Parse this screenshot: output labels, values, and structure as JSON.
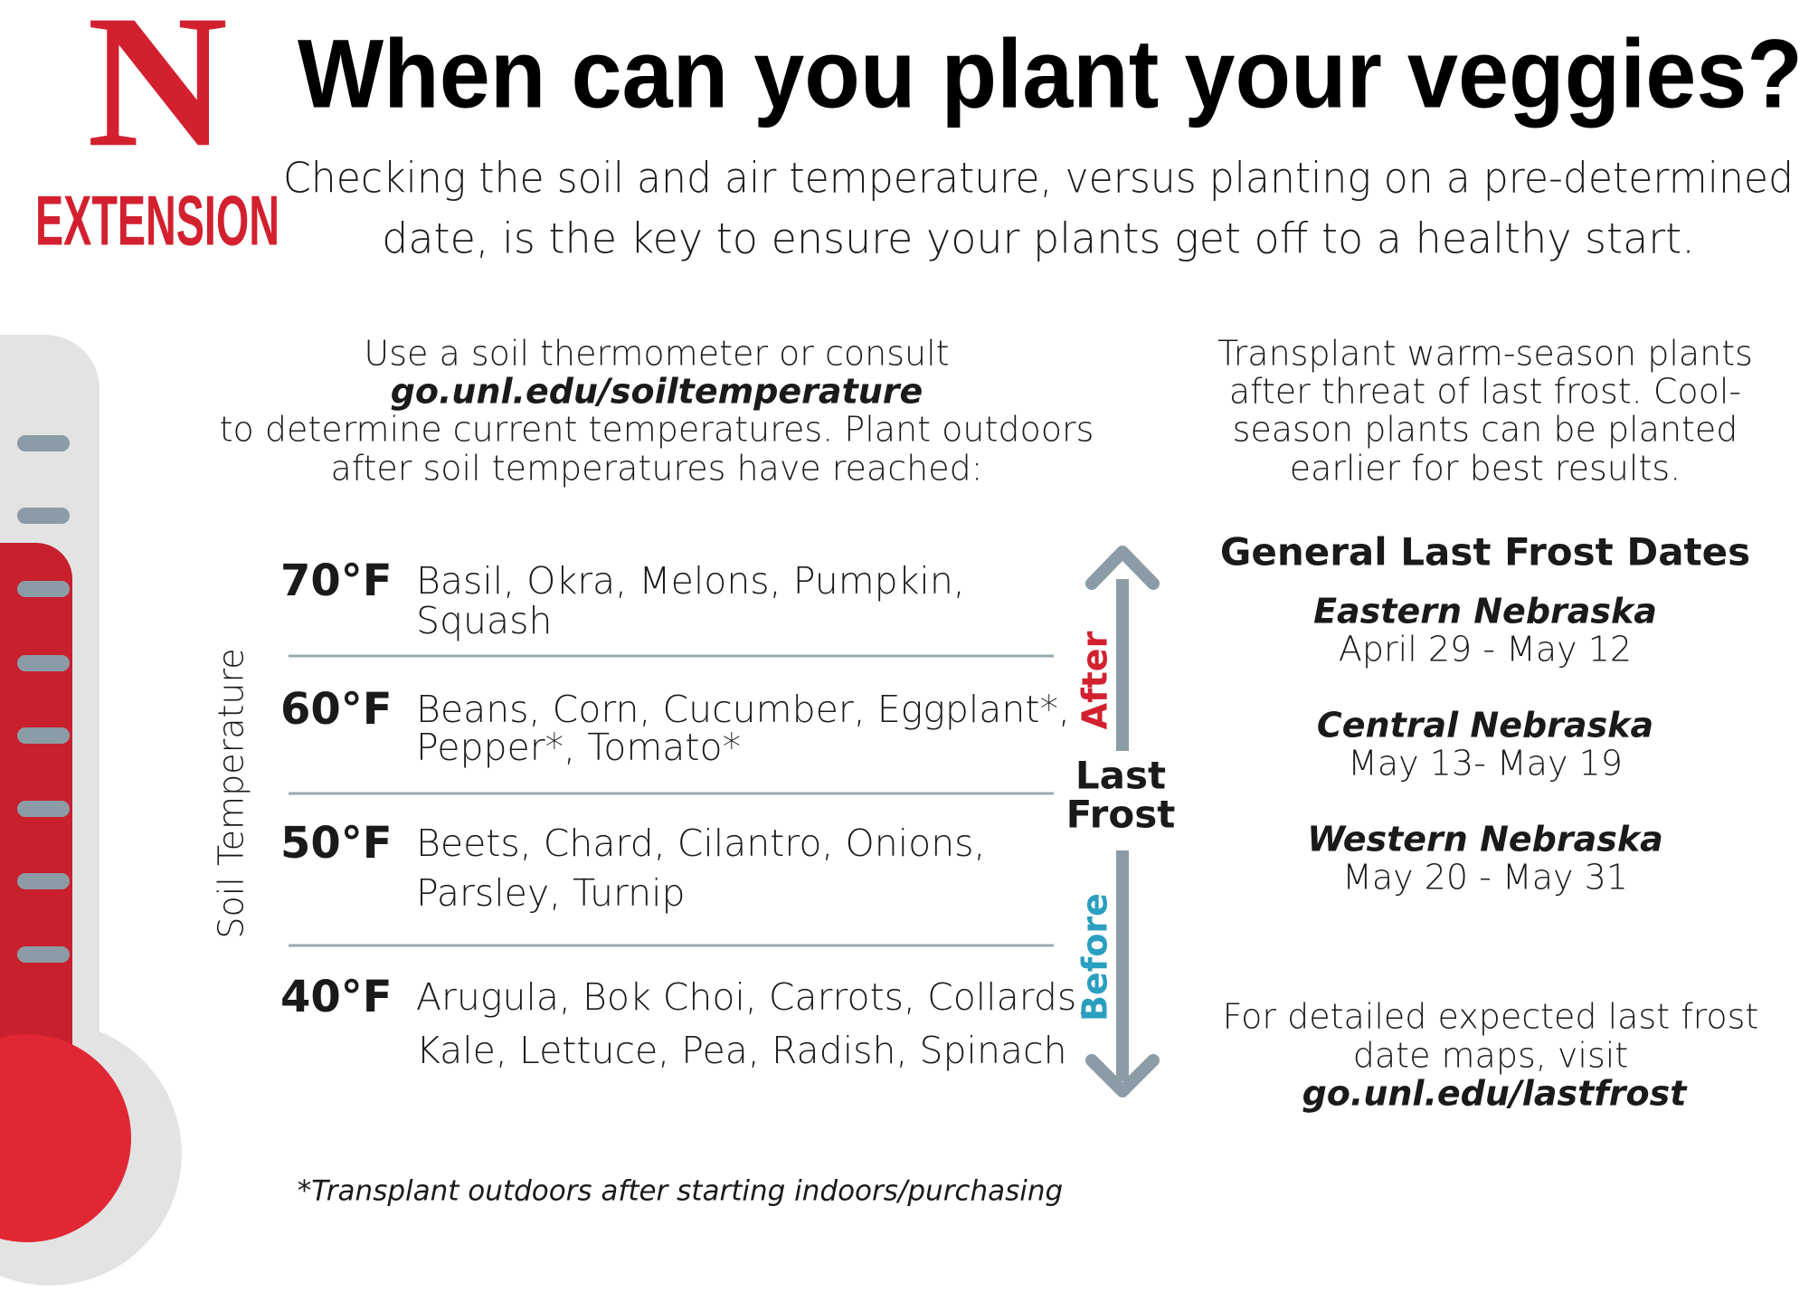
{
  "logo": {
    "letter": "N",
    "text": "EXTENSION"
  },
  "header": {
    "title": "When can you plant your veggies?",
    "subtitle": [
      "Checking the soil and air temperature, versus planting on a pre-determined",
      "date, is the key to ensure your plants get off to a healthy start."
    ]
  },
  "soil": {
    "intro": [
      "Use a soil thermometer or consult",
      "go.unl.edu/soiltemperature",
      "to determine current temperatures. Plant outdoors",
      "after soil temperatures have reached:"
    ],
    "axis_label": "Soil Temperature",
    "rows": [
      {
        "temp": "70°F",
        "plants": [
          "Basil, Okra, Melons, Pumpkin,",
          "Squash"
        ]
      },
      {
        "temp": "60°F",
        "plants": [
          "Beans, Corn, Cucumber, Eggplant*,",
          "Pepper*, Tomato*"
        ]
      },
      {
        "temp": "50°F",
        "plants": [
          "Beets, Chard, Cilantro, Onions,",
          "Parsley, Turnip"
        ]
      },
      {
        "temp": "40°F",
        "plants": [
          "Arugula, Bok Choi, Carrots, Collards,",
          "Kale, Lettuce, Pea, Radish, Spinach"
        ]
      }
    ]
  },
  "frost_arrow": {
    "after": "After",
    "center": [
      "Last",
      "Frost"
    ],
    "before": "Before"
  },
  "transplant": [
    "Transplant warm-season plants",
    "after threat of last frost. Cool-",
    "season plants can be planted",
    "earlier for best results."
  ],
  "frost_dates": {
    "heading": "General Last Frost Dates",
    "regions": [
      {
        "name": "Eastern Nebraska",
        "dates": "April 29 - May 12"
      },
      {
        "name": "Central Nebraska",
        "dates": "May 13- May 19"
      },
      {
        "name": "Western Nebraska",
        "dates": "May 20 - May 31"
      }
    ]
  },
  "details": [
    "For detailed expected last frost",
    "date maps, visit",
    "go.unl.edu/lastfrost"
  ],
  "footnote": "*Transplant outdoors after starting indoors/purchasing"
}
